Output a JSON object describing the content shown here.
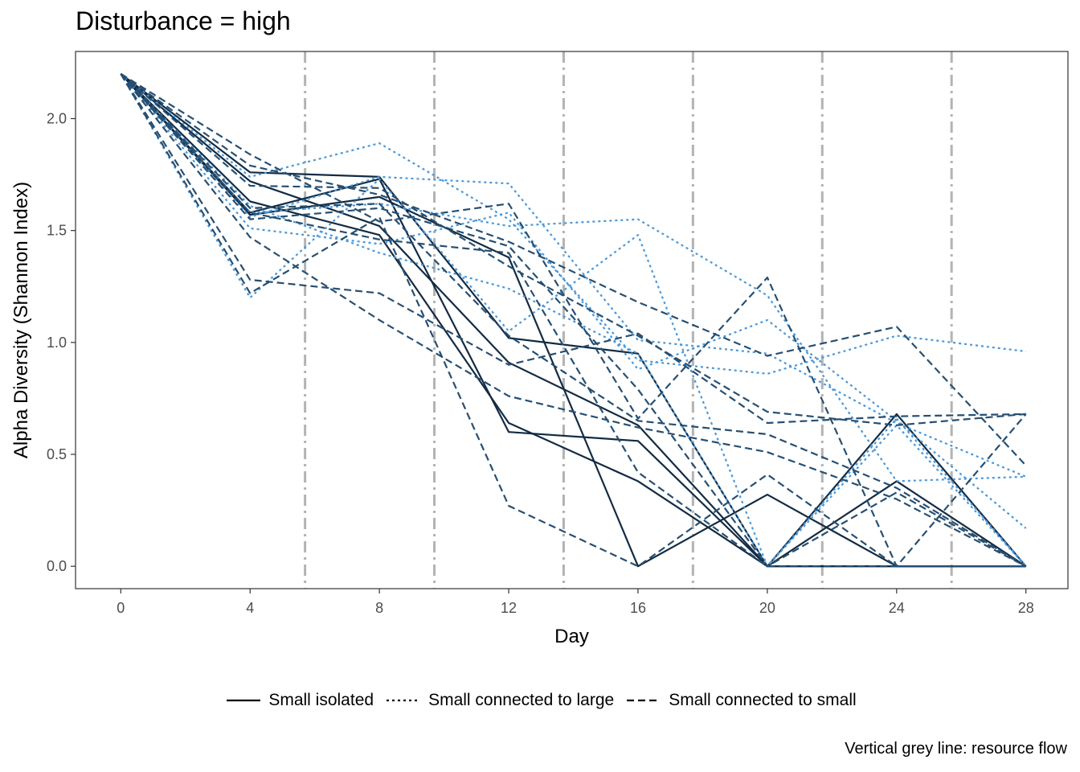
{
  "chart_data": {
    "type": "line",
    "title": "Disturbance = high",
    "xlabel": "Day",
    "ylabel": "Alpha Diversity (Shannon Index)",
    "caption": "Vertical grey line: resource flow",
    "x": [
      0,
      4,
      8,
      12,
      16,
      20,
      24,
      28
    ],
    "xlim": [
      -1.4,
      29.3
    ],
    "ylim": [
      -0.1,
      2.3
    ],
    "xticks": [
      "0",
      "4",
      "8",
      "12",
      "16",
      "20",
      "24",
      "28"
    ],
    "yticks": [
      "0.0",
      "0.5",
      "1.0",
      "1.5",
      "2.0"
    ],
    "resource_flow_days": [
      5.7,
      9.7,
      13.7,
      17.7,
      21.7,
      25.7
    ],
    "grid": false,
    "legend_position": "bottom",
    "legend": [
      {
        "label": "Small isolated",
        "dash": "solid"
      },
      {
        "label": "Small connected to large",
        "dash": "dotted"
      },
      {
        "label": "Small connected to small",
        "dash": "dashed"
      }
    ],
    "colors": {
      "Small isolated": "#132b43",
      "Small connected to large": "#4a98d9",
      "Small connected to small": "#264f72",
      "resource_flow": "#b3b3b3"
    },
    "series": [
      {
        "group": "Small isolated",
        "values": [
          2.2,
          1.76,
          1.74,
          1.02,
          0.95,
          0.0,
          0.0,
          0.0
        ]
      },
      {
        "group": "Small isolated",
        "values": [
          2.2,
          1.72,
          1.52,
          0.91,
          0.63,
          0.0,
          0.0,
          0.0
        ]
      },
      {
        "group": "Small isolated",
        "values": [
          2.2,
          1.63,
          1.48,
          0.64,
          0.38,
          0.0,
          0.68,
          0.0
        ]
      },
      {
        "group": "Small isolated",
        "values": [
          2.2,
          1.58,
          1.73,
          0.6,
          0.56,
          0.0,
          0.38,
          0.0
        ]
      },
      {
        "group": "Small isolated",
        "values": [
          2.2,
          1.57,
          1.65,
          1.38,
          0.0,
          0.32,
          0.0,
          0.0
        ]
      },
      {
        "group": "Small connected to large",
        "values": [
          2.2,
          1.74,
          1.89,
          1.55,
          0.92,
          0.86,
          1.03,
          0.96
        ]
      },
      {
        "group": "Small connected to large",
        "values": [
          2.2,
          1.56,
          1.74,
          1.71,
          1.01,
          0.95,
          0.64,
          0.4
        ]
      },
      {
        "group": "Small connected to large",
        "values": [
          2.2,
          1.58,
          1.62,
          1.52,
          1.55,
          1.21,
          0.38,
          0.4
        ]
      },
      {
        "group": "Small connected to large",
        "values": [
          2.2,
          1.51,
          1.44,
          1.58,
          0.88,
          1.1,
          0.65,
          0.17
        ]
      },
      {
        "group": "Small connected to large",
        "values": [
          2.2,
          1.2,
          1.73,
          1.05,
          1.48,
          0.0,
          0.63,
          0.0
        ]
      },
      {
        "group": "Small connected to large",
        "values": [
          2.2,
          1.61,
          1.4,
          1.24,
          0.95,
          0.0,
          0.66,
          0.0
        ]
      },
      {
        "group": "Small connected to small",
        "values": [
          2.2,
          1.84,
          1.54,
          1.62,
          0.66,
          1.29,
          0.0,
          0.68
        ]
      },
      {
        "group": "Small connected to small",
        "values": [
          2.2,
          1.79,
          1.66,
          1.45,
          1.18,
          0.94,
          1.07,
          0.45
        ]
      },
      {
        "group": "Small connected to small",
        "values": [
          2.2,
          1.7,
          1.69,
          1.34,
          1.03,
          0.69,
          0.63,
          0.68
        ]
      },
      {
        "group": "Small connected to small",
        "values": [
          2.2,
          1.28,
          1.22,
          0.9,
          1.04,
          0.64,
          0.67,
          0.68
        ]
      },
      {
        "group": "Small connected to small",
        "values": [
          2.2,
          1.22,
          1.56,
          0.27,
          0.0,
          0.41,
          0.0,
          0.0
        ]
      },
      {
        "group": "Small connected to small",
        "values": [
          2.2,
          1.47,
          1.1,
          0.76,
          0.62,
          0.51,
          0.3,
          0.0
        ]
      },
      {
        "group": "Small connected to small",
        "values": [
          2.2,
          1.55,
          1.6,
          1.43,
          0.79,
          0.0,
          0.33,
          0.0
        ]
      },
      {
        "group": "Small connected to small",
        "values": [
          2.2,
          1.58,
          1.46,
          1.4,
          0.42,
          0.0,
          0.0,
          0.0
        ]
      },
      {
        "group": "Small connected to small",
        "values": [
          2.2,
          1.6,
          1.62,
          1.03,
          0.65,
          0.59,
          0.35,
          0.0
        ]
      }
    ]
  }
}
